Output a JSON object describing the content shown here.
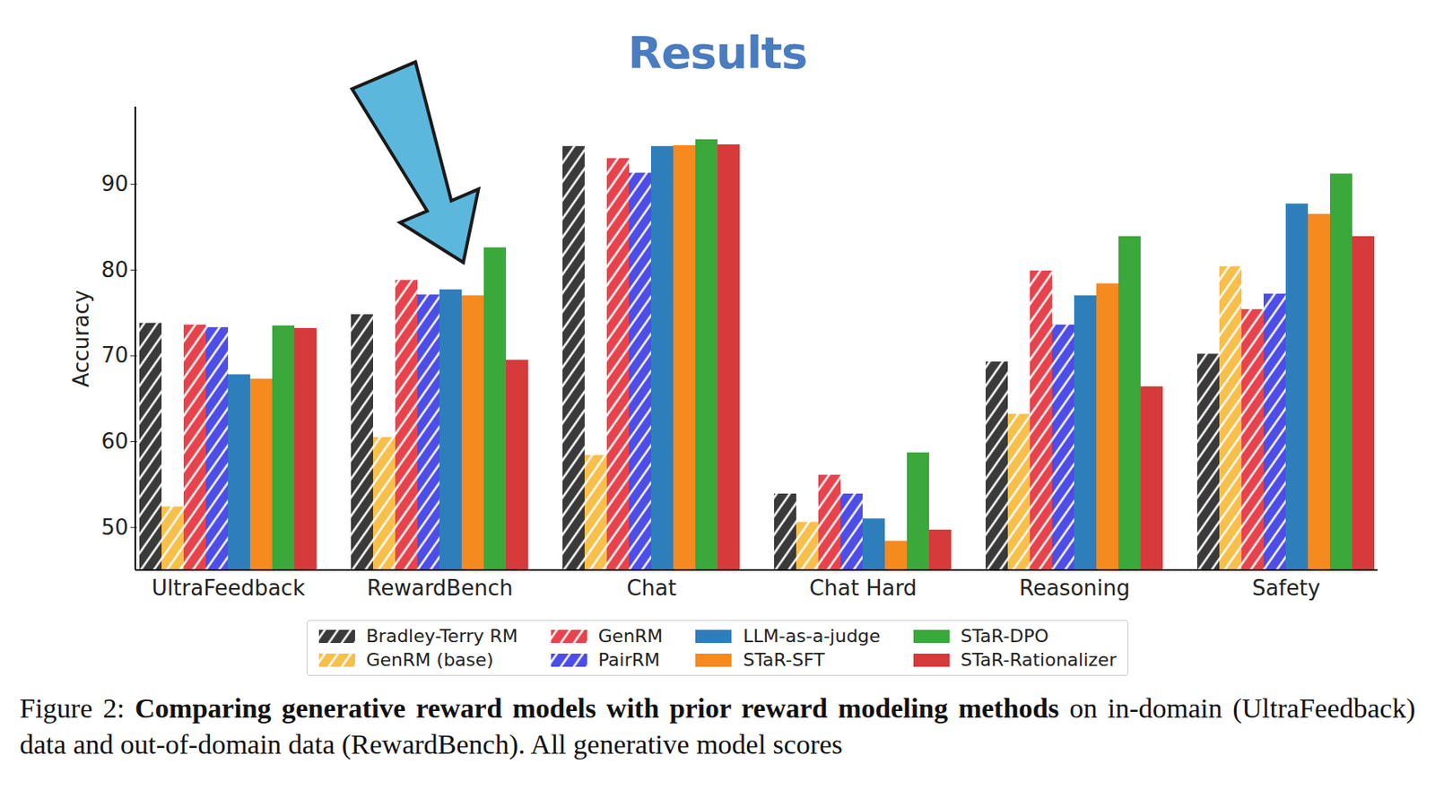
{
  "chart_data": {
    "type": "bar",
    "title": "Results",
    "y_label": "Accuracy",
    "categories": [
      "UltraFeedback",
      "RewardBench",
      "Chat",
      "Chat Hard",
      "Reasoning",
      "Safety"
    ],
    "series": [
      {
        "name": "Bradley-Terry RM",
        "color": "#3a3a3a",
        "line_style": "hatched",
        "values": [
          73.8,
          74.8,
          94.4,
          53.9,
          69.3,
          70.2
        ]
      },
      {
        "name": "GenRM (base)",
        "color": "#f9bf4b",
        "line_style": "hatched",
        "values": [
          52.4,
          60.5,
          58.4,
          50.6,
          63.2,
          80.4
        ]
      },
      {
        "name": "GenRM",
        "color": "#e8434c",
        "line_style": "hatched",
        "values": [
          73.6,
          78.8,
          93.0,
          56.1,
          79.9,
          75.4
        ]
      },
      {
        "name": "PairRM",
        "color": "#4d4de8",
        "line_style": "hatched",
        "values": [
          73.3,
          77.1,
          91.3,
          53.9,
          73.6,
          77.2
        ]
      },
      {
        "name": "LLM-as-a-judge",
        "color": "#2e7ebc",
        "line_style": "solid",
        "values": [
          67.8,
          77.7,
          94.4,
          51.0,
          77.0,
          87.7
        ]
      },
      {
        "name": "STaR-SFT",
        "color": "#f58a1f",
        "line_style": "solid",
        "values": [
          67.3,
          77.0,
          94.5,
          48.4,
          78.4,
          86.5
        ]
      },
      {
        "name": "STaR-DPO",
        "color": "#3aa83a",
        "line_style": "solid",
        "values": [
          73.5,
          82.6,
          95.2,
          58.7,
          83.9,
          91.2
        ]
      },
      {
        "name": "STaR-Rationalizer",
        "color": "#d63a3a",
        "line_style": "solid",
        "values": [
          73.2,
          69.5,
          94.6,
          49.7,
          66.4,
          83.9
        ]
      }
    ],
    "ylim": [
      45,
      99
    ],
    "yticks": [
      50,
      60,
      70,
      80,
      90
    ],
    "grid": false,
    "legend": "bottom",
    "caption": {
      "label": "Figure 2:",
      "bold": "Comparing generative reward models with prior reward modeling methods",
      "text": "on in-domain (UltraFeedback) data and out-of-domain data (RewardBench). All generative model scores"
    }
  }
}
